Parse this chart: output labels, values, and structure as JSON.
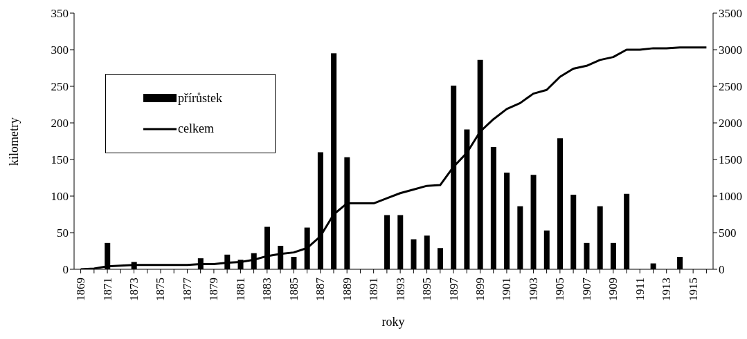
{
  "chart_data": {
    "type": "bar",
    "xlabel": "roky",
    "ylabel": "kilometry",
    "legend": "top left",
    "categories": [
      "1869",
      null,
      "1871",
      null,
      "1873",
      null,
      "1875",
      null,
      "1877",
      null,
      "1879",
      null,
      "1881",
      null,
      "1883",
      null,
      "1885",
      null,
      "1887",
      null,
      "1889",
      null,
      "1891",
      null,
      "1893",
      null,
      "1895",
      null,
      "1897",
      null,
      "1899",
      null,
      "1901",
      null,
      "1903",
      null,
      "1905",
      null,
      "1907",
      null,
      "1909",
      null,
      "1911",
      null,
      "1913",
      null,
      "1915",
      null
    ],
    "ylim": [
      0,
      350
    ],
    "yticks": [
      0,
      50,
      100,
      150,
      200,
      250,
      300,
      350
    ],
    "y2lim": [
      0,
      3500
    ],
    "y2ticks": [
      0,
      500,
      1000,
      1500,
      2000,
      2500,
      3000,
      3500
    ],
    "series": [
      {
        "name": "přírůstek",
        "color": "#000000",
        "values": [
          0,
          0,
          36,
          0,
          10,
          0,
          0,
          0,
          0,
          15,
          0,
          20,
          13,
          22,
          58,
          32,
          17,
          57,
          160,
          295,
          153,
          0,
          0,
          74,
          74,
          41,
          46,
          29,
          251,
          191,
          286,
          167,
          132,
          86,
          129,
          53,
          179,
          102,
          36,
          86,
          36,
          103,
          0,
          8,
          0,
          17,
          0,
          0
        ]
      },
      {
        "name": "celkem",
        "type": "line",
        "axis": "y2",
        "marker": "none",
        "color": "#000000",
        "values": [
          0,
          10,
          40,
          50,
          60,
          60,
          60,
          60,
          60,
          70,
          70,
          90,
          100,
          130,
          180,
          210,
          230,
          290,
          450,
          750,
          900,
          900,
          900,
          970,
          1040,
          1090,
          1140,
          1150,
          1400,
          1590,
          1880,
          2050,
          2190,
          2270,
          2400,
          2450,
          2630,
          2740,
          2780,
          2860,
          2900,
          3000,
          3000,
          3020,
          3020,
          3030,
          3030,
          3030
        ]
      }
    ]
  }
}
